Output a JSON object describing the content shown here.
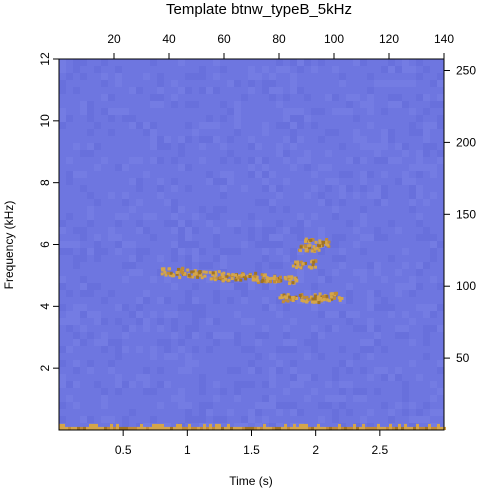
{
  "chart_data": {
    "type": "heatmap",
    "title": "Template btnw_typeB_5kHz",
    "xlabel": "Time (s)",
    "ylabel": "Frequency (kHz)",
    "x_bottom": {
      "range": [
        0,
        3.0
      ],
      "ticks": [
        0.5,
        1,
        1.5,
        2,
        2.5
      ],
      "tick_labels": [
        "0.5",
        "1",
        "1.5",
        "2",
        "2.5"
      ]
    },
    "y_left": {
      "range": [
        0,
        12
      ],
      "ticks": [
        2,
        4,
        6,
        8,
        10,
        12
      ],
      "tick_labels": [
        "2",
        "4",
        "6",
        "8",
        "10",
        "12"
      ]
    },
    "x_top": {
      "range": [
        0,
        140
      ],
      "ticks": [
        20,
        40,
        60,
        80,
        100,
        120,
        140
      ],
      "tick_labels": [
        "20",
        "40",
        "60",
        "80",
        "100",
        "120",
        "140"
      ]
    },
    "y_right": {
      "range": [
        0,
        258
      ],
      "ticks": [
        50,
        100,
        150,
        200,
        250
      ],
      "tick_labels": [
        "50",
        "100",
        "150",
        "200",
        "250"
      ]
    },
    "colors": {
      "background": "#6e76e0",
      "signal_light": "#d4a54a",
      "signal_dark": "#a07323",
      "signal_mid": "#c08b37"
    },
    "template_points": [
      {
        "t": 0.88,
        "f": 5.15
      },
      {
        "t": 1.0,
        "f": 5.1
      },
      {
        "t": 1.15,
        "f": 5.05
      },
      {
        "t": 1.3,
        "f": 5.0
      },
      {
        "t": 1.45,
        "f": 5.0
      },
      {
        "t": 1.6,
        "f": 4.95
      },
      {
        "t": 1.75,
        "f": 4.9
      },
      {
        "t": 1.9,
        "f": 5.4
      },
      {
        "t": 1.95,
        "f": 5.9
      },
      {
        "t": 2.0,
        "f": 6.1
      },
      {
        "t": 1.8,
        "f": 4.3
      },
      {
        "t": 1.95,
        "f": 4.3
      },
      {
        "t": 2.1,
        "f": 4.35
      }
    ]
  }
}
